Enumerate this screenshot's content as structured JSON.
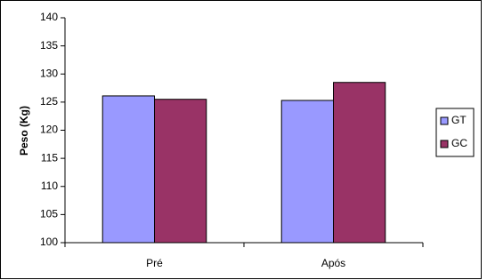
{
  "chart_data": {
    "type": "bar",
    "y_label": "Peso (Kg)",
    "categories": [
      "Pré",
      "Após"
    ],
    "series": [
      {
        "name": "GT",
        "color": "#9999ff",
        "values": [
          126.1,
          125.3
        ]
      },
      {
        "name": "GC",
        "color": "#993366",
        "values": [
          125.5,
          128.5
        ]
      }
    ],
    "ylim": [
      100,
      140
    ],
    "yticks": [
      100,
      105,
      110,
      115,
      120,
      125,
      130,
      135,
      140
    ],
    "legend": "right"
  }
}
